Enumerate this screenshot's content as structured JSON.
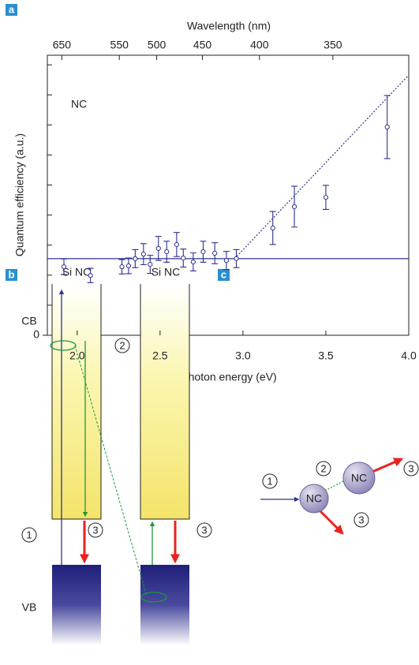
{
  "panel_labels": [
    "a",
    "b",
    "c"
  ],
  "chart_data": {
    "type": "scatter",
    "xlabel": "Photon energy (eV)",
    "ylabel": "Quantum efficiency (a.u.)",
    "x2label": "Wavelength (nm)",
    "annotation": "NC",
    "color": "#2e3192",
    "xlim": [
      1.82,
      4.0
    ],
    "xticks": [
      {
        "value": 2.0,
        "label": "2.0"
      },
      {
        "value": 2.5,
        "label": "2.5"
      },
      {
        "value": 3.0,
        "label": "3.0"
      },
      {
        "value": 3.5,
        "label": "3.5"
      },
      {
        "value": 4.0,
        "label": "4.0"
      }
    ],
    "x2ticks": [
      650,
      550,
      500,
      450,
      400,
      350
    ],
    "ylim": [
      0,
      9.32
    ],
    "yticks": [
      0
    ],
    "yticks_minor": [
      1,
      2,
      3,
      4,
      5,
      6,
      7,
      8,
      9
    ],
    "x": [
      1.92,
      2.08,
      2.27,
      2.31,
      2.35,
      2.4,
      2.44,
      2.49,
      2.54,
      2.6,
      2.64,
      2.7,
      2.76,
      2.83,
      2.9,
      2.96,
      3.18,
      3.31,
      3.5,
      3.87
    ],
    "values": [
      2.28,
      1.99,
      2.28,
      2.31,
      2.55,
      2.7,
      2.36,
      2.89,
      2.78,
      3.02,
      2.57,
      2.44,
      2.78,
      2.73,
      2.49,
      2.55,
      3.57,
      4.28,
      4.59,
      6.93
    ],
    "errors": [
      0.26,
      0.24,
      0.24,
      0.26,
      0.3,
      0.35,
      0.3,
      0.4,
      0.35,
      0.4,
      0.3,
      0.3,
      0.35,
      0.35,
      0.3,
      0.3,
      0.55,
      0.68,
      0.4,
      1.05
    ],
    "baseline": {
      "x": [
        1.82,
        4.0
      ],
      "values": [
        2.55,
        2.55
      ]
    },
    "trend": {
      "x": [
        2.95,
        4.0
      ],
      "values": [
        2.55,
        8.66
      ]
    }
  },
  "diagram_b": {
    "nc_left": "Si NC",
    "nc_right": "Si NC",
    "cb": "CB",
    "vb": "VB",
    "steps": [
      "1",
      "2",
      "3",
      "3"
    ]
  },
  "diagram_c": {
    "nc_a": "NC",
    "nc_b": "NC",
    "steps": [
      "1",
      "2",
      "3",
      "3"
    ]
  }
}
